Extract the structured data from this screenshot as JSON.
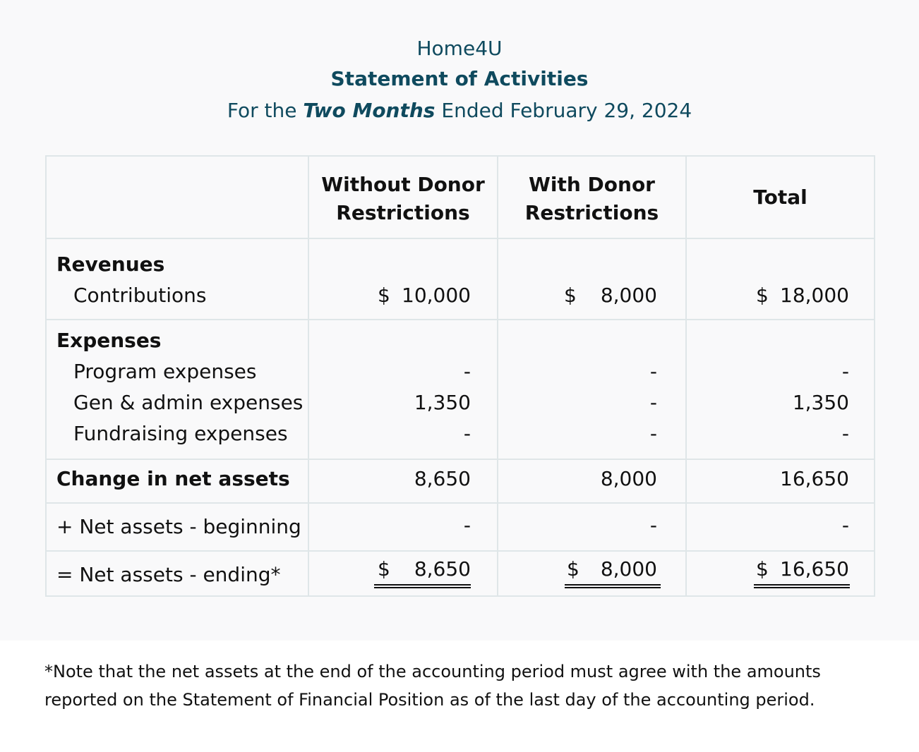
{
  "header": {
    "org": "Home4U",
    "title": "Statement of Activities",
    "period_prefix": "For the ",
    "period_emph": "Two Months",
    "period_suffix": " Ended February 29, 2024"
  },
  "columns": {
    "c1_line1": "Without Donor",
    "c1_line2": "Restrictions",
    "c2_line1": "With Donor",
    "c2_line2": "Restrictions",
    "c3": "Total"
  },
  "sections": {
    "revenues": "Revenues",
    "expenses": "Expenses"
  },
  "rows": {
    "contributions": {
      "label": "Contributions",
      "dollar": "$",
      "c1": "10,000",
      "c2": "8,000",
      "c3": "18,000"
    },
    "program": {
      "label": "Program expenses",
      "c1": "-",
      "c2": "-",
      "c3": "-"
    },
    "genadmin": {
      "label": "Gen & admin expenses",
      "c1": "1,350",
      "c2": "-",
      "c3": "1,350"
    },
    "fundraising": {
      "label": "Fundraising expenses",
      "c1": "-",
      "c2": "-",
      "c3": "-"
    },
    "change": {
      "label": "Change in net assets",
      "c1": "8,650",
      "c2": "8,000",
      "c3": "16,650"
    },
    "beginning": {
      "label": "+ Net assets - beginning",
      "c1": "-",
      "c2": "-",
      "c3": "-"
    },
    "ending": {
      "label": "= Net assets - ending*",
      "dollar": "$",
      "c1": "8,650",
      "c2": "8,000",
      "c3": "16,650"
    }
  },
  "footnote": "*Note that the net assets at the end of the accounting period must agree with the amounts reported on the Statement of Financial Position as of the last day of the accounting period."
}
